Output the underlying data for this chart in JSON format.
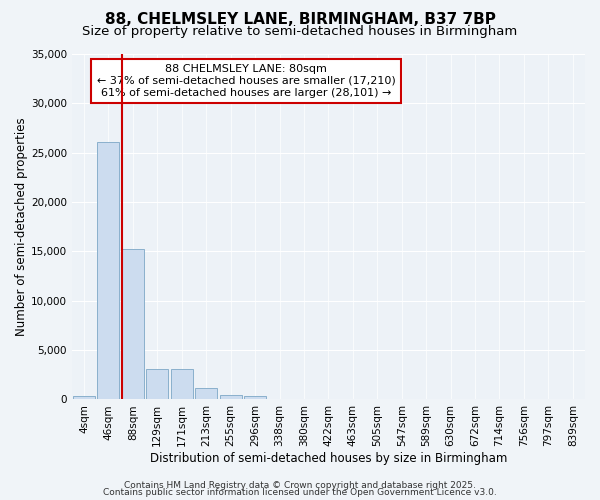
{
  "title": "88, CHELMSLEY LANE, BIRMINGHAM, B37 7BP",
  "subtitle": "Size of property relative to semi-detached houses in Birmingham",
  "xlabel": "Distribution of semi-detached houses by size in Birmingham",
  "ylabel": "Number of semi-detached properties",
  "categories": [
    "4sqm",
    "46sqm",
    "88sqm",
    "129sqm",
    "171sqm",
    "213sqm",
    "255sqm",
    "296sqm",
    "338sqm",
    "380sqm",
    "422sqm",
    "463sqm",
    "505sqm",
    "547sqm",
    "589sqm",
    "630sqm",
    "672sqm",
    "714sqm",
    "756sqm",
    "797sqm",
    "839sqm"
  ],
  "values": [
    400,
    26100,
    15200,
    3100,
    3100,
    1200,
    500,
    300,
    0,
    0,
    0,
    0,
    0,
    0,
    0,
    0,
    0,
    0,
    0,
    0,
    0
  ],
  "bar_color": "#ccdcef",
  "bar_edgecolor": "#8ab0cc",
  "red_line_index": 2,
  "annotation_text": "88 CHELMSLEY LANE: 80sqm\n← 37% of semi-detached houses are smaller (17,210)\n61% of semi-detached houses are larger (28,101) →",
  "annotation_box_color": "#ffffff",
  "annotation_box_edgecolor": "#cc0000",
  "ylim": [
    0,
    35000
  ],
  "yticks": [
    0,
    5000,
    10000,
    15000,
    20000,
    25000,
    30000,
    35000
  ],
  "bg_color": "#f0f4f8",
  "plot_bg_color": "#edf2f7",
  "grid_color": "#ffffff",
  "footer_line1": "Contains HM Land Registry data © Crown copyright and database right 2025.",
  "footer_line2": "Contains public sector information licensed under the Open Government Licence v3.0.",
  "title_fontsize": 11,
  "subtitle_fontsize": 9.5,
  "axis_label_fontsize": 8.5,
  "tick_fontsize": 7.5,
  "annotation_fontsize": 8,
  "footer_fontsize": 6.5
}
